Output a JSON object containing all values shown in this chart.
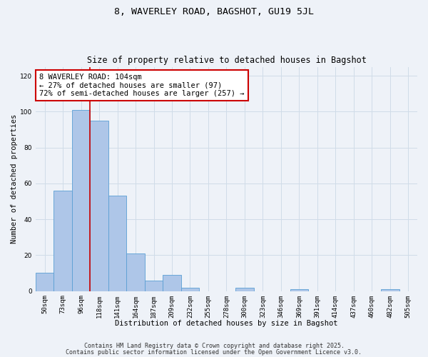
{
  "title": "8, WAVERLEY ROAD, BAGSHOT, GU19 5JL",
  "subtitle": "Size of property relative to detached houses in Bagshot",
  "xlabel": "Distribution of detached houses by size in Bagshot",
  "ylabel": "Number of detached properties",
  "bin_labels": [
    "50sqm",
    "73sqm",
    "96sqm",
    "118sqm",
    "141sqm",
    "164sqm",
    "187sqm",
    "209sqm",
    "232sqm",
    "255sqm",
    "278sqm",
    "300sqm",
    "323sqm",
    "346sqm",
    "369sqm",
    "391sqm",
    "414sqm",
    "437sqm",
    "460sqm",
    "482sqm",
    "505sqm"
  ],
  "bar_values": [
    10,
    56,
    101,
    95,
    53,
    21,
    6,
    9,
    2,
    0,
    0,
    2,
    0,
    0,
    1,
    0,
    0,
    0,
    0,
    1,
    0
  ],
  "bar_color": "#aec6e8",
  "bar_edge_color": "#5a9fd4",
  "vline_color": "#cc0000",
  "vline_pos": 2.5,
  "annotation_text": "8 WAVERLEY ROAD: 104sqm\n← 27% of detached houses are smaller (97)\n72% of semi-detached houses are larger (257) →",
  "annotation_box_color": "#ffffff",
  "annotation_box_edge_color": "#cc0000",
  "ylim": [
    0,
    125
  ],
  "yticks": [
    0,
    20,
    40,
    60,
    80,
    100,
    120
  ],
  "grid_color": "#d0dce8",
  "background_color": "#eef2f8",
  "footer_line1": "Contains HM Land Registry data © Crown copyright and database right 2025.",
  "footer_line2": "Contains public sector information licensed under the Open Government Licence v3.0.",
  "title_fontsize": 9.5,
  "subtitle_fontsize": 8.5,
  "axis_label_fontsize": 7.5,
  "tick_fontsize": 6.5,
  "annotation_fontsize": 7.5,
  "footer_fontsize": 6
}
